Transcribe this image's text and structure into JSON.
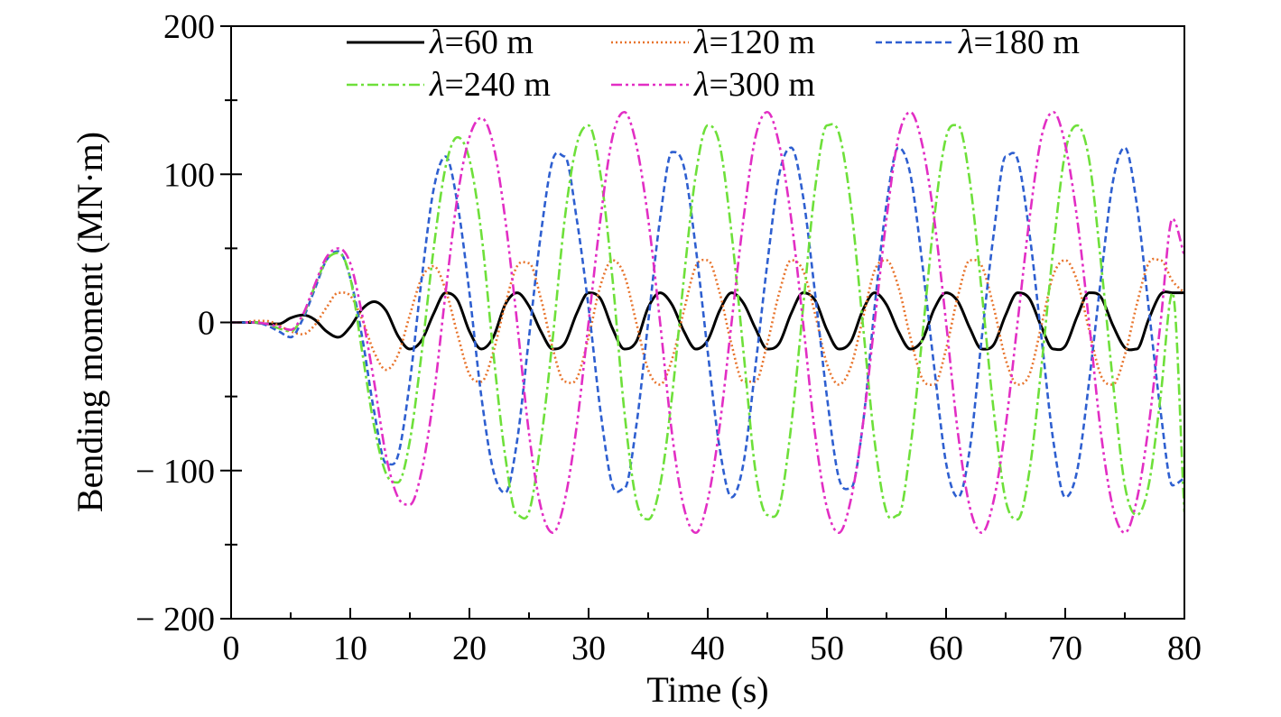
{
  "chart_data": {
    "type": "line",
    "title": "",
    "xlabel": "Time (s)",
    "ylabel": "Bending moment (MN·m)",
    "xlim": [
      0,
      80
    ],
    "ylim": [
      -200,
      200
    ],
    "x_ticks": [
      0,
      10,
      20,
      30,
      40,
      50,
      60,
      70,
      80
    ],
    "x_tick_labels": [
      "0",
      "10",
      "20",
      "30",
      "40",
      "50",
      "60",
      "70",
      "80"
    ],
    "y_ticks": [
      200,
      100,
      0,
      -100,
      -200
    ],
    "y_tick_labels": [
      "200",
      "100",
      "0",
      "− 100",
      "− 200"
    ],
    "grid": false,
    "legend_position": "top",
    "series": [
      {
        "name": "λ=60 m",
        "name_symbol": "λ",
        "name_rest": "=60 m",
        "color": "#000000",
        "dash": "solid",
        "x": [
          0,
          1,
          2,
          3,
          4,
          5,
          6,
          7,
          8,
          9,
          10,
          11,
          12,
          13,
          14,
          15,
          16,
          17,
          18,
          19,
          20,
          21,
          22,
          23,
          24,
          25,
          26,
          27,
          28,
          29,
          30,
          31,
          32,
          33,
          34,
          35,
          36,
          37,
          38,
          39,
          40,
          41,
          42,
          43,
          44,
          45,
          46,
          47,
          48,
          49,
          50,
          51,
          52,
          53,
          54,
          55,
          56,
          57,
          58,
          59,
          60,
          61,
          62,
          63,
          64,
          65,
          66,
          67,
          68,
          69,
          70,
          71,
          72,
          73,
          74,
          75,
          76,
          77,
          78,
          79,
          80
        ],
        "values": [
          0,
          0,
          0,
          -1,
          -1,
          3,
          5,
          2,
          -6,
          -10,
          -3,
          9,
          14,
          8,
          -9,
          -18,
          -12,
          6,
          20,
          15,
          -6,
          -18,
          -10,
          12,
          20,
          11,
          -6,
          -18,
          -14,
          6,
          20,
          16,
          -4,
          -18,
          -13,
          10,
          20,
          12,
          -6,
          -18,
          -12,
          8,
          20,
          13,
          -4,
          -18,
          -14,
          6,
          20,
          15,
          -5,
          -18,
          -13,
          8,
          20,
          12,
          -6,
          -18,
          -12,
          9,
          20,
          14,
          -4,
          -18,
          -15,
          5,
          20,
          16,
          -3,
          -18,
          -16,
          4,
          20,
          17,
          -2,
          -17,
          -18,
          2,
          19,
          20,
          20
        ]
      },
      {
        "name": "λ=120 m",
        "name_symbol": "λ",
        "name_rest": "=120 m",
        "color": "#e8742c",
        "dash": "dotted",
        "x": [
          0,
          1,
          2,
          3,
          4,
          5,
          6,
          7,
          8,
          9,
          10,
          11,
          12,
          13,
          14,
          15,
          16,
          17,
          18,
          19,
          20,
          21,
          22,
          23,
          24,
          25,
          26,
          27,
          28,
          29,
          30,
          31,
          32,
          33,
          34,
          35,
          36,
          37,
          38,
          39,
          40,
          41,
          42,
          43,
          44,
          45,
          46,
          47,
          48,
          49,
          50,
          51,
          52,
          53,
          54,
          55,
          56,
          57,
          58,
          59,
          60,
          61,
          62,
          63,
          64,
          65,
          66,
          67,
          68,
          69,
          70,
          71,
          72,
          73,
          74,
          75,
          76,
          77,
          78,
          79,
          80
        ],
        "values": [
          0,
          0,
          1,
          1,
          -2,
          -6,
          -8,
          -2,
          10,
          20,
          18,
          2,
          -20,
          -32,
          -22,
          5,
          30,
          38,
          22,
          -8,
          -35,
          -40,
          -20,
          12,
          38,
          40,
          16,
          -18,
          -40,
          -38,
          -10,
          25,
          42,
          32,
          0,
          -32,
          -42,
          -25,
          8,
          38,
          42,
          20,
          -15,
          -40,
          -40,
          -14,
          20,
          42,
          35,
          6,
          -28,
          -42,
          -30,
          2,
          35,
          42,
          24,
          -10,
          -38,
          -42,
          -18,
          18,
          42,
          38,
          10,
          -25,
          -42,
          -35,
          -2,
          32,
          42,
          28,
          -5,
          -36,
          -42,
          -22,
          12,
          40,
          42,
          28,
          20
        ]
      },
      {
        "name": "λ=180 m",
        "name_symbol": "λ",
        "name_rest": "=180 m",
        "color": "#2e5fd0",
        "dash": "dashed",
        "x": [
          0,
          1,
          2,
          3,
          4,
          5,
          6,
          7,
          8,
          9,
          10,
          11,
          12,
          13,
          14,
          15,
          16,
          17,
          18,
          19,
          20,
          21,
          22,
          23,
          24,
          25,
          26,
          27,
          28,
          29,
          30,
          31,
          32,
          33,
          34,
          35,
          36,
          37,
          38,
          39,
          40,
          41,
          42,
          43,
          44,
          45,
          46,
          47,
          48,
          49,
          50,
          51,
          52,
          53,
          54,
          55,
          56,
          57,
          58,
          59,
          60,
          61,
          62,
          63,
          64,
          65,
          66,
          67,
          68,
          69,
          70,
          71,
          72,
          73,
          74,
          75,
          76,
          77,
          78,
          79,
          80
        ],
        "values": [
          0,
          0,
          0,
          -2,
          -6,
          -10,
          2,
          22,
          42,
          48,
          30,
          -10,
          -60,
          -95,
          -90,
          -40,
          30,
          90,
          112,
          80,
          20,
          -50,
          -100,
          -115,
          -80,
          -10,
          60,
          110,
          112,
          70,
          10,
          -60,
          -110,
          -112,
          -70,
          0,
          70,
          115,
          105,
          50,
          -20,
          -85,
          -118,
          -95,
          -30,
          40,
          100,
          118,
          85,
          20,
          -50,
          -105,
          -112,
          -70,
          10,
          80,
          118,
          100,
          40,
          -30,
          -95,
          -118,
          -85,
          -10,
          60,
          112,
          110,
          60,
          -10,
          -80,
          -118,
          -100,
          -40,
          30,
          95,
          118,
          80,
          10,
          -60,
          -110,
          -105
        ]
      },
      {
        "name": "λ=240 m",
        "name_symbol": "λ",
        "name_rest": "=240 m",
        "color": "#6ee03a",
        "dash": "dashdot",
        "x": [
          0,
          1,
          2,
          3,
          4,
          5,
          6,
          7,
          8,
          9,
          10,
          11,
          12,
          13,
          14,
          15,
          16,
          17,
          18,
          19,
          20,
          21,
          22,
          23,
          24,
          25,
          26,
          27,
          28,
          29,
          30,
          31,
          32,
          33,
          34,
          35,
          36,
          37,
          38,
          39,
          40,
          41,
          42,
          43,
          44,
          45,
          46,
          47,
          48,
          49,
          50,
          51,
          52,
          53,
          54,
          55,
          56,
          57,
          58,
          59,
          60,
          61,
          62,
          63,
          64,
          65,
          66,
          67,
          68,
          69,
          70,
          71,
          72,
          73,
          74,
          75,
          76,
          77,
          78,
          79,
          80
        ],
        "values": [
          0,
          0,
          0,
          -1,
          -4,
          -6,
          4,
          24,
          42,
          47,
          30,
          -20,
          -70,
          -102,
          -108,
          -80,
          -20,
          50,
          105,
          125,
          110,
          60,
          -20,
          -90,
          -130,
          -128,
          -80,
          -10,
          70,
          120,
          133,
          100,
          30,
          -60,
          -120,
          -133,
          -110,
          -50,
          30,
          100,
          133,
          120,
          60,
          -20,
          -100,
          -130,
          -125,
          -70,
          10,
          90,
          133,
          128,
          80,
          0,
          -80,
          -128,
          -130,
          -85,
          -10,
          70,
          125,
          133,
          95,
          20,
          -60,
          -120,
          -133,
          -100,
          -30,
          50,
          115,
          133,
          110,
          40,
          -40,
          -110,
          -130,
          -110,
          -50,
          20,
          -128
        ]
      },
      {
        "name": "λ=300 m",
        "name_symbol": "λ",
        "name_rest": "=300 m",
        "color": "#e22ec4",
        "dash": "dashdotdot",
        "x": [
          0,
          1,
          2,
          3,
          4,
          5,
          6,
          7,
          8,
          9,
          10,
          11,
          12,
          13,
          14,
          15,
          16,
          17,
          18,
          19,
          20,
          21,
          22,
          23,
          24,
          25,
          26,
          27,
          28,
          29,
          30,
          31,
          32,
          33,
          34,
          35,
          36,
          37,
          38,
          39,
          40,
          41,
          42,
          43,
          44,
          45,
          46,
          47,
          48,
          49,
          50,
          51,
          52,
          53,
          54,
          55,
          56,
          57,
          58,
          59,
          60,
          61,
          62,
          63,
          64,
          65,
          66,
          67,
          68,
          69,
          70,
          71,
          72,
          73,
          74,
          75,
          76,
          77,
          78,
          79,
          80
        ],
        "values": [
          0,
          0,
          0,
          -1,
          -3,
          -5,
          5,
          25,
          44,
          50,
          40,
          5,
          -40,
          -90,
          -118,
          -123,
          -100,
          -50,
          20,
          85,
          125,
          138,
          120,
          70,
          0,
          -75,
          -125,
          -142,
          -120,
          -70,
          0,
          70,
          125,
          142,
          120,
          70,
          0,
          -75,
          -125,
          -142,
          -120,
          -70,
          0,
          70,
          125,
          142,
          120,
          70,
          0,
          -75,
          -125,
          -142,
          -120,
          -70,
          0,
          70,
          125,
          142,
          120,
          70,
          0,
          -75,
          -125,
          -142,
          -120,
          -70,
          0,
          70,
          125,
          142,
          120,
          70,
          0,
          -75,
          -125,
          -142,
          -120,
          -70,
          0,
          70,
          45
        ]
      }
    ]
  }
}
